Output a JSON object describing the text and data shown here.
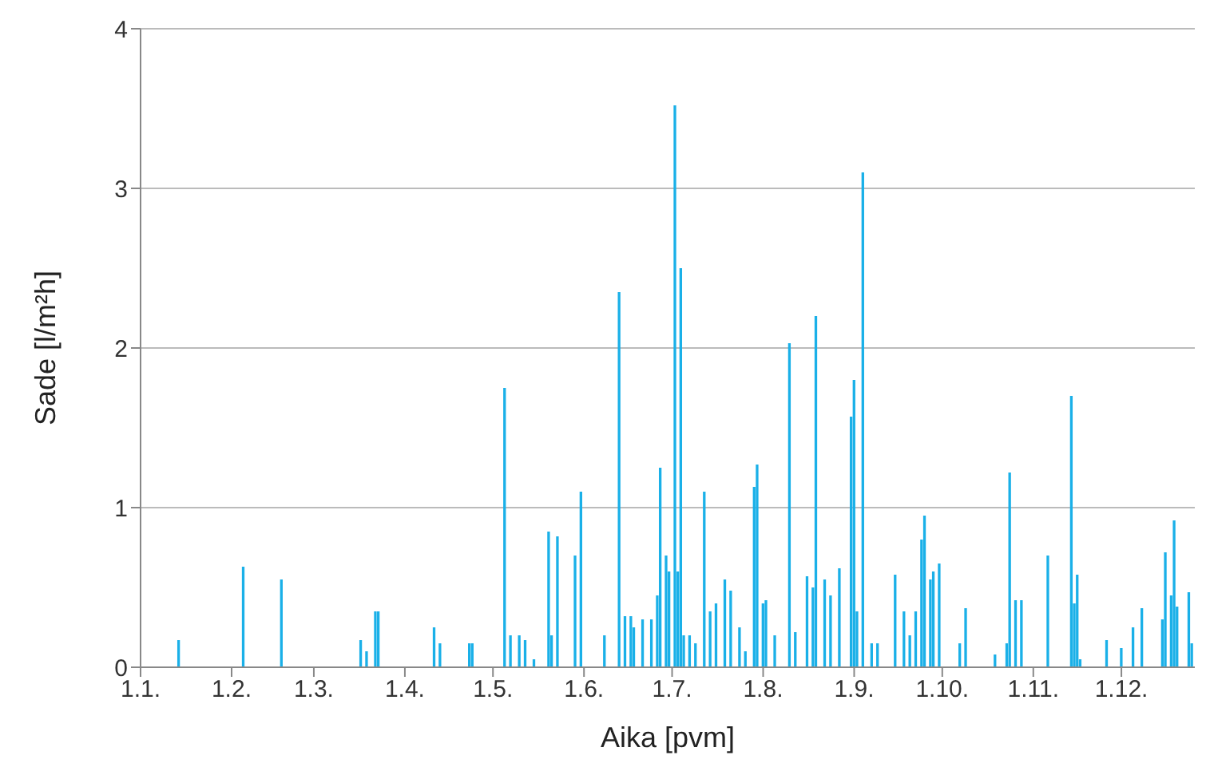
{
  "chart_data": {
    "type": "bar",
    "xlabel": "Aika [pvm]",
    "ylabel": "Sade [l/m²h]",
    "color": "#1ab0e8",
    "grid": "y",
    "ylim": [
      0,
      4
    ],
    "yticks": [
      0,
      1,
      2,
      3,
      4
    ],
    "xlim": [
      "--01-01",
      "--12-26"
    ],
    "xticks": [
      {
        "value": "--01-01",
        "label": "1.1."
      },
      {
        "value": "--02-01",
        "label": "1.2."
      },
      {
        "value": "--03-01",
        "label": "1.3."
      },
      {
        "value": "--04-01",
        "label": "1.4."
      },
      {
        "value": "--05-01",
        "label": "1.5."
      },
      {
        "value": "--06-01",
        "label": "1.6."
      },
      {
        "value": "--07-01",
        "label": "1.7."
      },
      {
        "value": "--08-01",
        "label": "1.8."
      },
      {
        "value": "--09-01",
        "label": "1.9."
      },
      {
        "value": "--10-01",
        "label": "1.10."
      },
      {
        "value": "--11-01",
        "label": "1.11."
      },
      {
        "value": "--12-01",
        "label": "1.12."
      }
    ],
    "x": [
      "--01-14",
      "--02-05",
      "--02-18",
      "--03-17",
      "--03-19",
      "--03-22",
      "--03-23",
      "--04-11",
      "--04-13",
      "--04-23",
      "--04-24",
      "--05-05",
      "--05-07",
      "--05-10",
      "--05-12",
      "--05-15",
      "--05-20",
      "--05-21",
      "--05-23",
      "--05-29",
      "--05-31",
      "--06-08",
      "--06-13",
      "--06-15",
      "--06-17",
      "--06-18",
      "--06-21",
      "--06-24",
      "--06-26",
      "--06-27",
      "--06-29",
      "--06-30",
      "--07-02",
      "--07-03",
      "--07-04",
      "--07-05",
      "--07-07",
      "--07-09",
      "--07-12",
      "--07-14",
      "--07-16",
      "--07-19",
      "--07-21",
      "--07-24",
      "--07-26",
      "--07-29",
      "--07-30",
      "--08-01",
      "--08-02",
      "--08-05",
      "--08-10",
      "--08-12",
      "--08-16",
      "--08-18",
      "--08-19",
      "--08-22",
      "--08-24",
      "--08-27",
      "--08-31",
      "--09-01",
      "--09-02",
      "--09-04",
      "--09-07",
      "--09-09",
      "--09-15",
      "--09-18",
      "--09-20",
      "--09-22",
      "--09-24",
      "--09-25",
      "--09-27",
      "--09-28",
      "--09-30",
      "--10-07",
      "--10-09",
      "--10-19",
      "--10-23",
      "--10-24",
      "--10-26",
      "--10-28",
      "--11-06",
      "--11-14",
      "--11-15",
      "--11-16",
      "--11-17",
      "--11-26",
      "--12-01",
      "--12-05",
      "--12-08",
      "--12-15",
      "--12-16",
      "--12-18",
      "--12-19",
      "--12-20",
      "--12-24",
      "--12-25"
    ],
    "values": [
      0.17,
      0.63,
      0.55,
      0.17,
      0.1,
      0.35,
      0.35,
      0.25,
      0.15,
      0.15,
      0.15,
      1.75,
      0.2,
      0.2,
      0.17,
      0.05,
      0.85,
      0.2,
      0.82,
      0.7,
      1.1,
      0.2,
      2.35,
      0.32,
      0.32,
      0.25,
      0.3,
      0.3,
      0.45,
      1.25,
      0.7,
      0.6,
      3.52,
      0.6,
      2.5,
      0.2,
      0.2,
      0.15,
      1.1,
      0.35,
      0.4,
      0.55,
      0.48,
      0.25,
      0.1,
      1.13,
      1.27,
      0.4,
      0.42,
      0.2,
      2.03,
      0.22,
      0.57,
      0.5,
      2.2,
      0.55,
      0.45,
      0.62,
      1.57,
      1.8,
      0.35,
      3.1,
      0.15,
      0.15,
      0.58,
      0.35,
      0.2,
      0.35,
      0.8,
      0.95,
      0.55,
      0.6,
      0.65,
      0.15,
      0.37,
      0.08,
      0.15,
      1.22,
      0.42,
      0.42,
      0.7,
      1.7,
      0.4,
      0.58,
      0.05,
      0.17,
      0.12,
      0.25,
      0.37,
      0.3,
      0.72,
      0.45,
      0.92,
      0.38,
      0.47,
      0.15
    ]
  }
}
